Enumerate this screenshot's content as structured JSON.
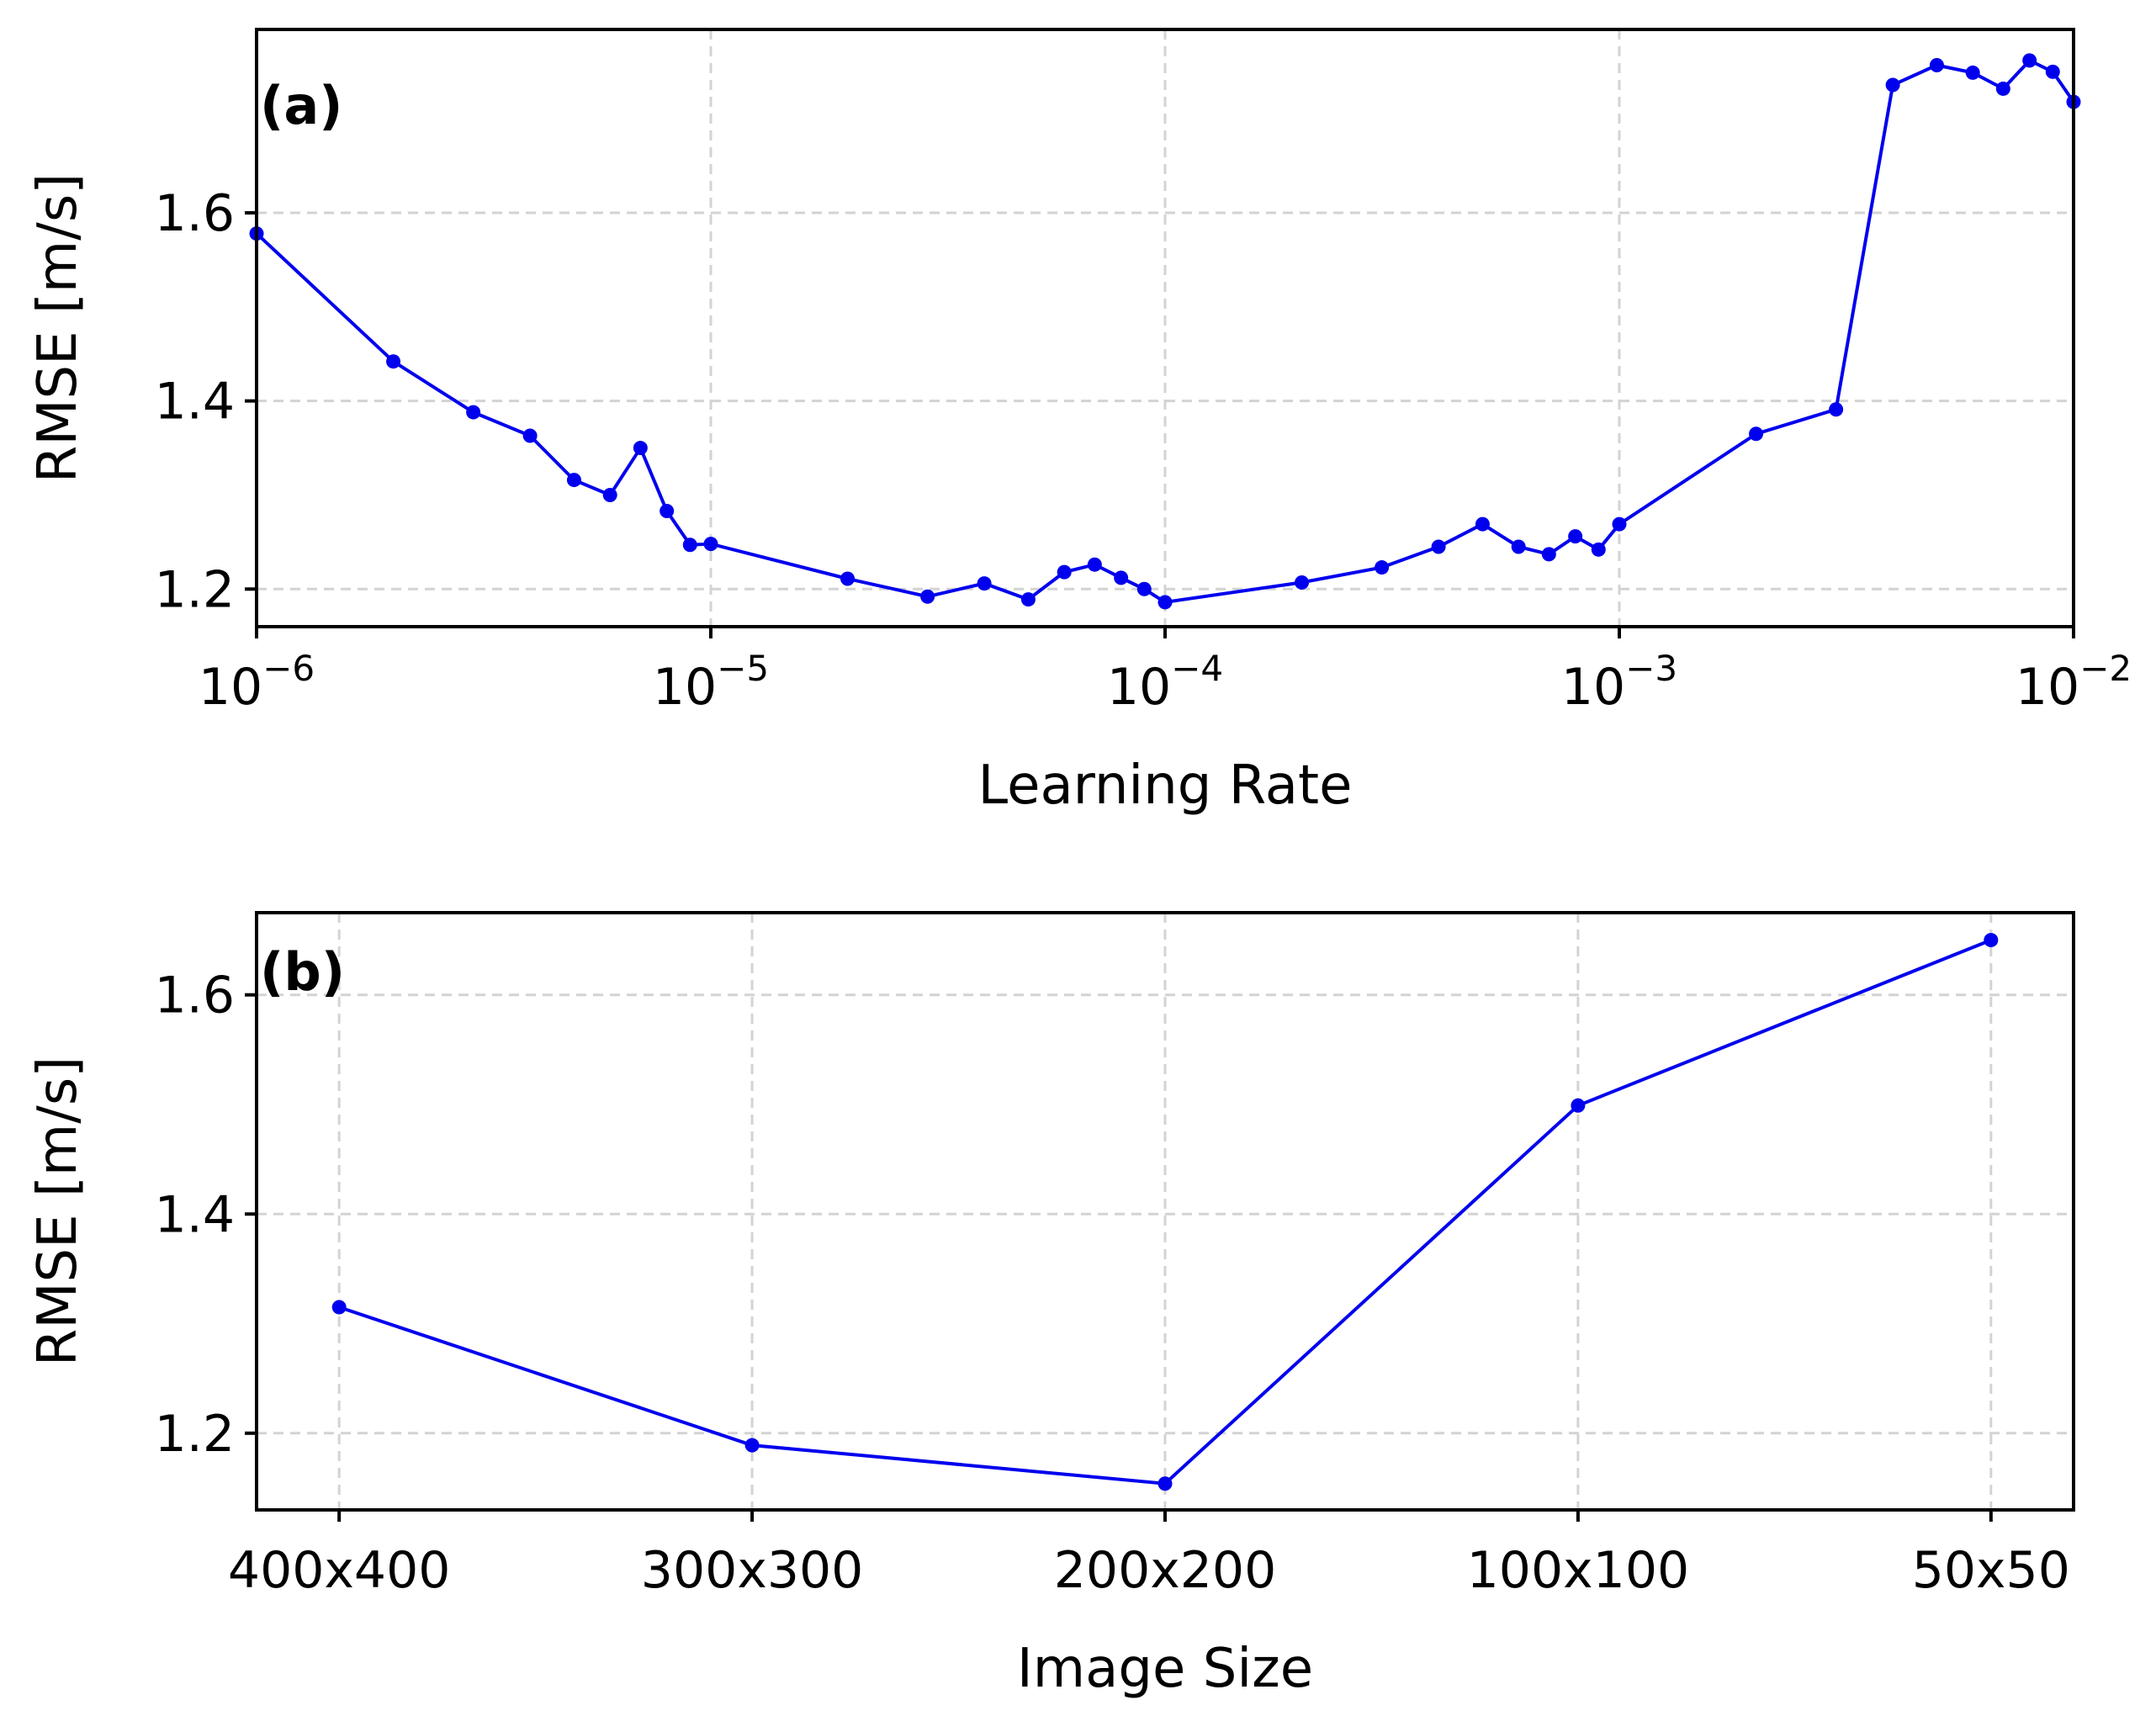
{
  "chart_data": [
    {
      "type": "line",
      "panel_label": "(a)",
      "xlabel": "Learning Rate",
      "ylabel": "RMSE [m/s]",
      "xscale": "log",
      "xlim": [
        1e-06,
        0.01
      ],
      "ylim": [
        1.16,
        1.795
      ],
      "grid": true,
      "x_ticks": [
        {
          "value": 1e-06,
          "base": "10",
          "exp": "−6"
        },
        {
          "value": 1e-05,
          "base": "10",
          "exp": "−5"
        },
        {
          "value": 0.0001,
          "base": "10",
          "exp": "−4"
        },
        {
          "value": 0.001,
          "base": "10",
          "exp": "−3"
        },
        {
          "value": 0.01,
          "base": "10",
          "exp": "−2"
        }
      ],
      "y_ticks": [
        "1.2",
        "1.4",
        "1.6"
      ],
      "series_color": "#0000ee",
      "x": [
        1e-06,
        2e-06,
        3e-06,
        4e-06,
        5e-06,
        6e-06,
        7e-06,
        8e-06,
        9e-06,
        1e-05,
        2e-05,
        3e-05,
        4e-05,
        5e-05,
        6e-05,
        7e-05,
        8e-05,
        9e-05,
        0.0001,
        0.0002,
        0.0003,
        0.0004,
        0.0005,
        0.0006,
        0.0007,
        0.0008,
        0.0009,
        0.001,
        0.002,
        0.003,
        0.004,
        0.005,
        0.006,
        0.007,
        0.008,
        0.009,
        0.01
      ],
      "y": [
        1.578,
        1.442,
        1.388,
        1.363,
        1.316,
        1.3,
        1.35,
        1.283,
        1.247,
        1.248,
        1.211,
        1.192,
        1.206,
        1.189,
        1.218,
        1.226,
        1.212,
        1.2,
        1.186,
        1.207,
        1.223,
        1.245,
        1.269,
        1.245,
        1.237,
        1.256,
        1.242,
        1.269,
        1.365,
        1.391,
        1.736,
        1.757,
        1.749,
        1.732,
        1.762,
        1.75,
        1.718
      ]
    },
    {
      "type": "line",
      "panel_label": "(b)",
      "xlabel": "Image Size",
      "ylabel": "RMSE [m/s]",
      "ylim": [
        1.13,
        1.675
      ],
      "grid": true,
      "categories": [
        "400x400",
        "300x300",
        "200x200",
        "100x100",
        "50x50"
      ],
      "y_ticks": [
        "1.2",
        "1.4",
        "1.6"
      ],
      "series_color": "#0000ee",
      "values": [
        1.315,
        1.189,
        1.154,
        1.499,
        1.65
      ]
    }
  ]
}
